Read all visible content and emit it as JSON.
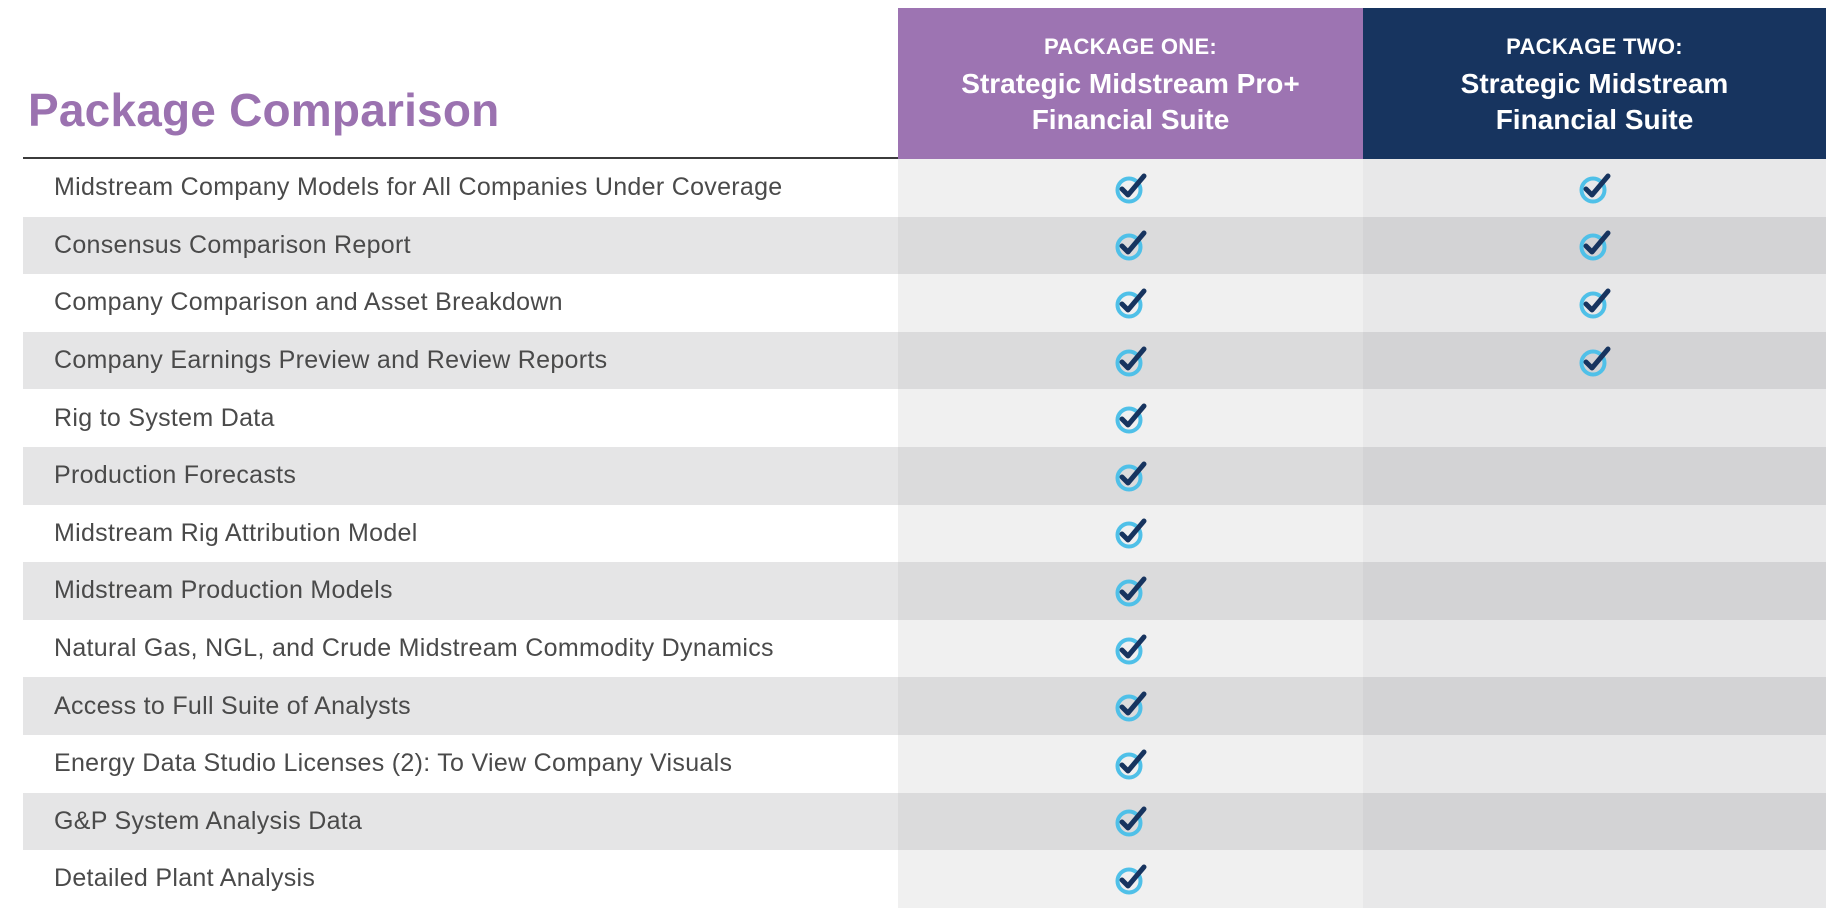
{
  "header": {
    "title": "Package Comparison",
    "package_one": {
      "kicker": "PACKAGE ONE:",
      "name_line1": "Strategic Midstream Pro+",
      "name_line2": "Financial Suite",
      "color": "#9d74b2"
    },
    "package_two": {
      "kicker": "PACKAGE TWO:",
      "name_line1": "Strategic Midstream",
      "name_line2": "Financial Suite",
      "color": "#17345f"
    }
  },
  "colors": {
    "title": "#9b72b0",
    "check_ring": "#4fc0e8",
    "check_mark": "#17345f"
  },
  "features": [
    {
      "label": "Midstream Company Models for All Companies Under Coverage",
      "package_one": true,
      "package_two": true
    },
    {
      "label": "Consensus Comparison Report",
      "package_one": true,
      "package_two": true
    },
    {
      "label": "Company Comparison and Asset Breakdown",
      "package_one": true,
      "package_two": true
    },
    {
      "label": "Company Earnings Preview and Review Reports",
      "package_one": true,
      "package_two": true
    },
    {
      "label": "Rig to System Data",
      "package_one": true,
      "package_two": false
    },
    {
      "label": "Production Forecasts",
      "package_one": true,
      "package_two": false
    },
    {
      "label": "Midstream Rig Attribution Model",
      "package_one": true,
      "package_two": false
    },
    {
      "label": "Midstream Production Models",
      "package_one": true,
      "package_two": false
    },
    {
      "label": "Natural Gas, NGL, and Crude Midstream Commodity Dynamics",
      "package_one": true,
      "package_two": false
    },
    {
      "label": "Access to Full Suite of Analysts",
      "package_one": true,
      "package_two": false
    },
    {
      "label": "Energy Data Studio Licenses (2): To View Company Visuals",
      "package_one": true,
      "package_two": false
    },
    {
      "label": "G&P System Analysis Data",
      "package_one": true,
      "package_two": false
    },
    {
      "label": "Detailed Plant Analysis",
      "package_one": true,
      "package_two": false
    }
  ],
  "icons": {
    "included": "check-icon"
  }
}
